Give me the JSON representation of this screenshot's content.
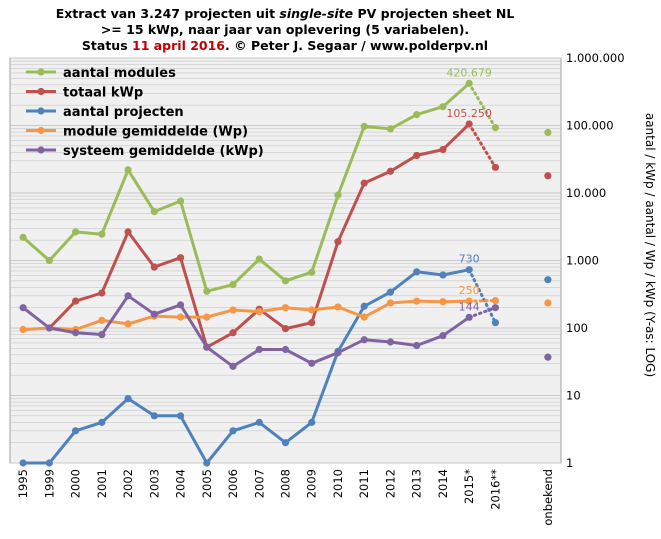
{
  "title": {
    "line1_pre": "Extract van 3.247 projecten uit ",
    "line1_italic": "single-site",
    "line1_post": " PV projecten sheet NL",
    "line2": ">= 15 kWp, naar jaar van oplevering (5 variabelen).",
    "line3_pre": "Status ",
    "line3_date": "11 april 2016",
    "line3_post": ". © Peter J. Segaar / www.polderpv.nl"
  },
  "colors": {
    "green": "#9bbb59",
    "red": "#c0504d",
    "blue": "#4f81bd",
    "orange": "#f79646",
    "purple": "#8064a2",
    "grid": "#c8c8c8",
    "plot_bg": "#f0f0f0"
  },
  "chart_data": {
    "type": "line",
    "y_scale": "log",
    "ylim": [
      1,
      1000000
    ],
    "ylabel": "aantal / kWp / aantal / Wp / kWp (Y-as: LOG)",
    "y_ticks": [
      "1",
      "10",
      "100",
      "1.000",
      "10.000",
      "100.000",
      "1.000.000"
    ],
    "grid": true,
    "legend_position": "top-left",
    "categories": [
      "1995",
      "1999",
      "2000",
      "2001",
      "2002",
      "2003",
      "2004",
      "2005",
      "2006",
      "2007",
      "2008",
      "2009",
      "2010",
      "2011",
      "2012",
      "2013",
      "2014",
      "2015*",
      "2016**",
      "",
      "onbekend"
    ],
    "series": [
      {
        "name": "aantal modules",
        "color": "green",
        "values": [
          2200,
          1000,
          2650,
          2450,
          22000,
          5300,
          7600,
          350,
          440,
          1050,
          500,
          670,
          9300,
          97000,
          89000,
          145000,
          190000,
          420679,
          93000,
          null,
          79000
        ],
        "data_labels": {
          "17": "420.679"
        }
      },
      {
        "name": "totaal kWp",
        "color": "red",
        "values": [
          null,
          100,
          250,
          330,
          2650,
          800,
          1100,
          52,
          85,
          190,
          98,
          120,
          1900,
          14000,
          21000,
          36000,
          44000,
          105250,
          24000,
          null,
          18000
        ],
        "data_labels": {
          "17": "105.250"
        }
      },
      {
        "name": "aantal projecten",
        "color": "blue",
        "values": [
          1,
          1,
          3,
          4,
          9,
          5,
          5,
          1,
          3,
          4,
          2,
          4,
          45,
          210,
          340,
          680,
          610,
          730,
          120,
          null,
          520
        ],
        "data_labels": {
          "17": "730"
        }
      },
      {
        "name": "module gemiddelde (Wp)",
        "color": "orange",
        "values": [
          95,
          100,
          95,
          130,
          115,
          150,
          145,
          145,
          185,
          175,
          200,
          185,
          205,
          145,
          235,
          250,
          245,
          250,
          255,
          null,
          235
        ],
        "data_labels": {
          "17": "250"
        }
      },
      {
        "name": "systeem gemiddelde (kWp)",
        "color": "purple",
        "values": [
          200,
          100,
          85,
          80,
          300,
          160,
          220,
          52,
          27,
          48,
          48,
          30,
          43,
          67,
          62,
          55,
          77,
          144,
          200,
          null,
          37
        ],
        "data_labels": {
          "17": "144"
        }
      }
    ],
    "dotted_segment": [
      17,
      18
    ],
    "standalone_indices": [
      20
    ]
  }
}
